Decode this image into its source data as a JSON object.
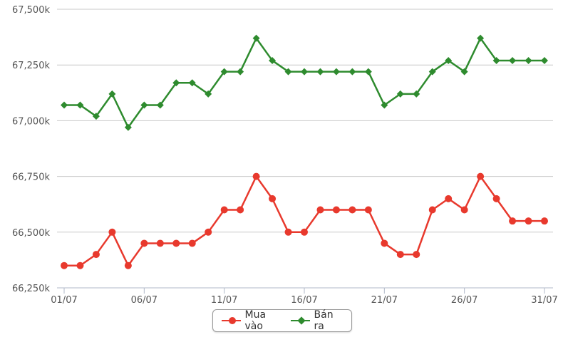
{
  "chart_data": {
    "type": "line",
    "title": "",
    "xlabel": "",
    "ylabel": "",
    "ylim": [
      66250,
      67500
    ],
    "y_ticks": [
      66250,
      66500,
      66750,
      67000,
      67250,
      67500
    ],
    "y_tick_labels": [
      "66,250k",
      "66,500k",
      "66,750k",
      "67,000k",
      "67,250k",
      "67,500k"
    ],
    "x_tick_labels": [
      "01/07",
      "06/07",
      "11/07",
      "16/07",
      "21/07",
      "26/07",
      "31/07"
    ],
    "x_tick_days": [
      1,
      6,
      11,
      16,
      21,
      26,
      31
    ],
    "x": [
      "01/07",
      "02/07",
      "03/07",
      "04/07",
      "05/07",
      "06/07",
      "07/07",
      "08/07",
      "09/07",
      "10/07",
      "11/07",
      "12/07",
      "13/07",
      "14/07",
      "15/07",
      "16/07",
      "17/07",
      "18/07",
      "19/07",
      "20/07",
      "21/07",
      "22/07",
      "23/07",
      "24/07",
      "25/07",
      "26/07",
      "27/07",
      "28/07",
      "29/07",
      "30/07",
      "31/07"
    ],
    "grid": true,
    "legend_position": "bottom-center",
    "series": [
      {
        "name": "Mua vào",
        "color": "#e8392d",
        "marker": "circle",
        "values": [
          66350,
          66350,
          66400,
          66500,
          66350,
          66450,
          66450,
          66450,
          66450,
          66500,
          66600,
          66600,
          66750,
          66650,
          66500,
          66500,
          66600,
          66600,
          66600,
          66600,
          66450,
          66400,
          66400,
          66600,
          66650,
          66600,
          66750,
          66650,
          66550,
          66550,
          66550
        ]
      },
      {
        "name": "Bán ra",
        "color": "#2e8b2e",
        "marker": "diamond",
        "values": [
          67070,
          67070,
          67020,
          67120,
          66970,
          67070,
          67070,
          67170,
          67170,
          67120,
          67220,
          67220,
          67370,
          67270,
          67220,
          67220,
          67220,
          67220,
          67220,
          67220,
          67070,
          67120,
          67120,
          67220,
          67270,
          67220,
          67370,
          67270,
          67270,
          67270,
          67270
        ]
      }
    ]
  }
}
